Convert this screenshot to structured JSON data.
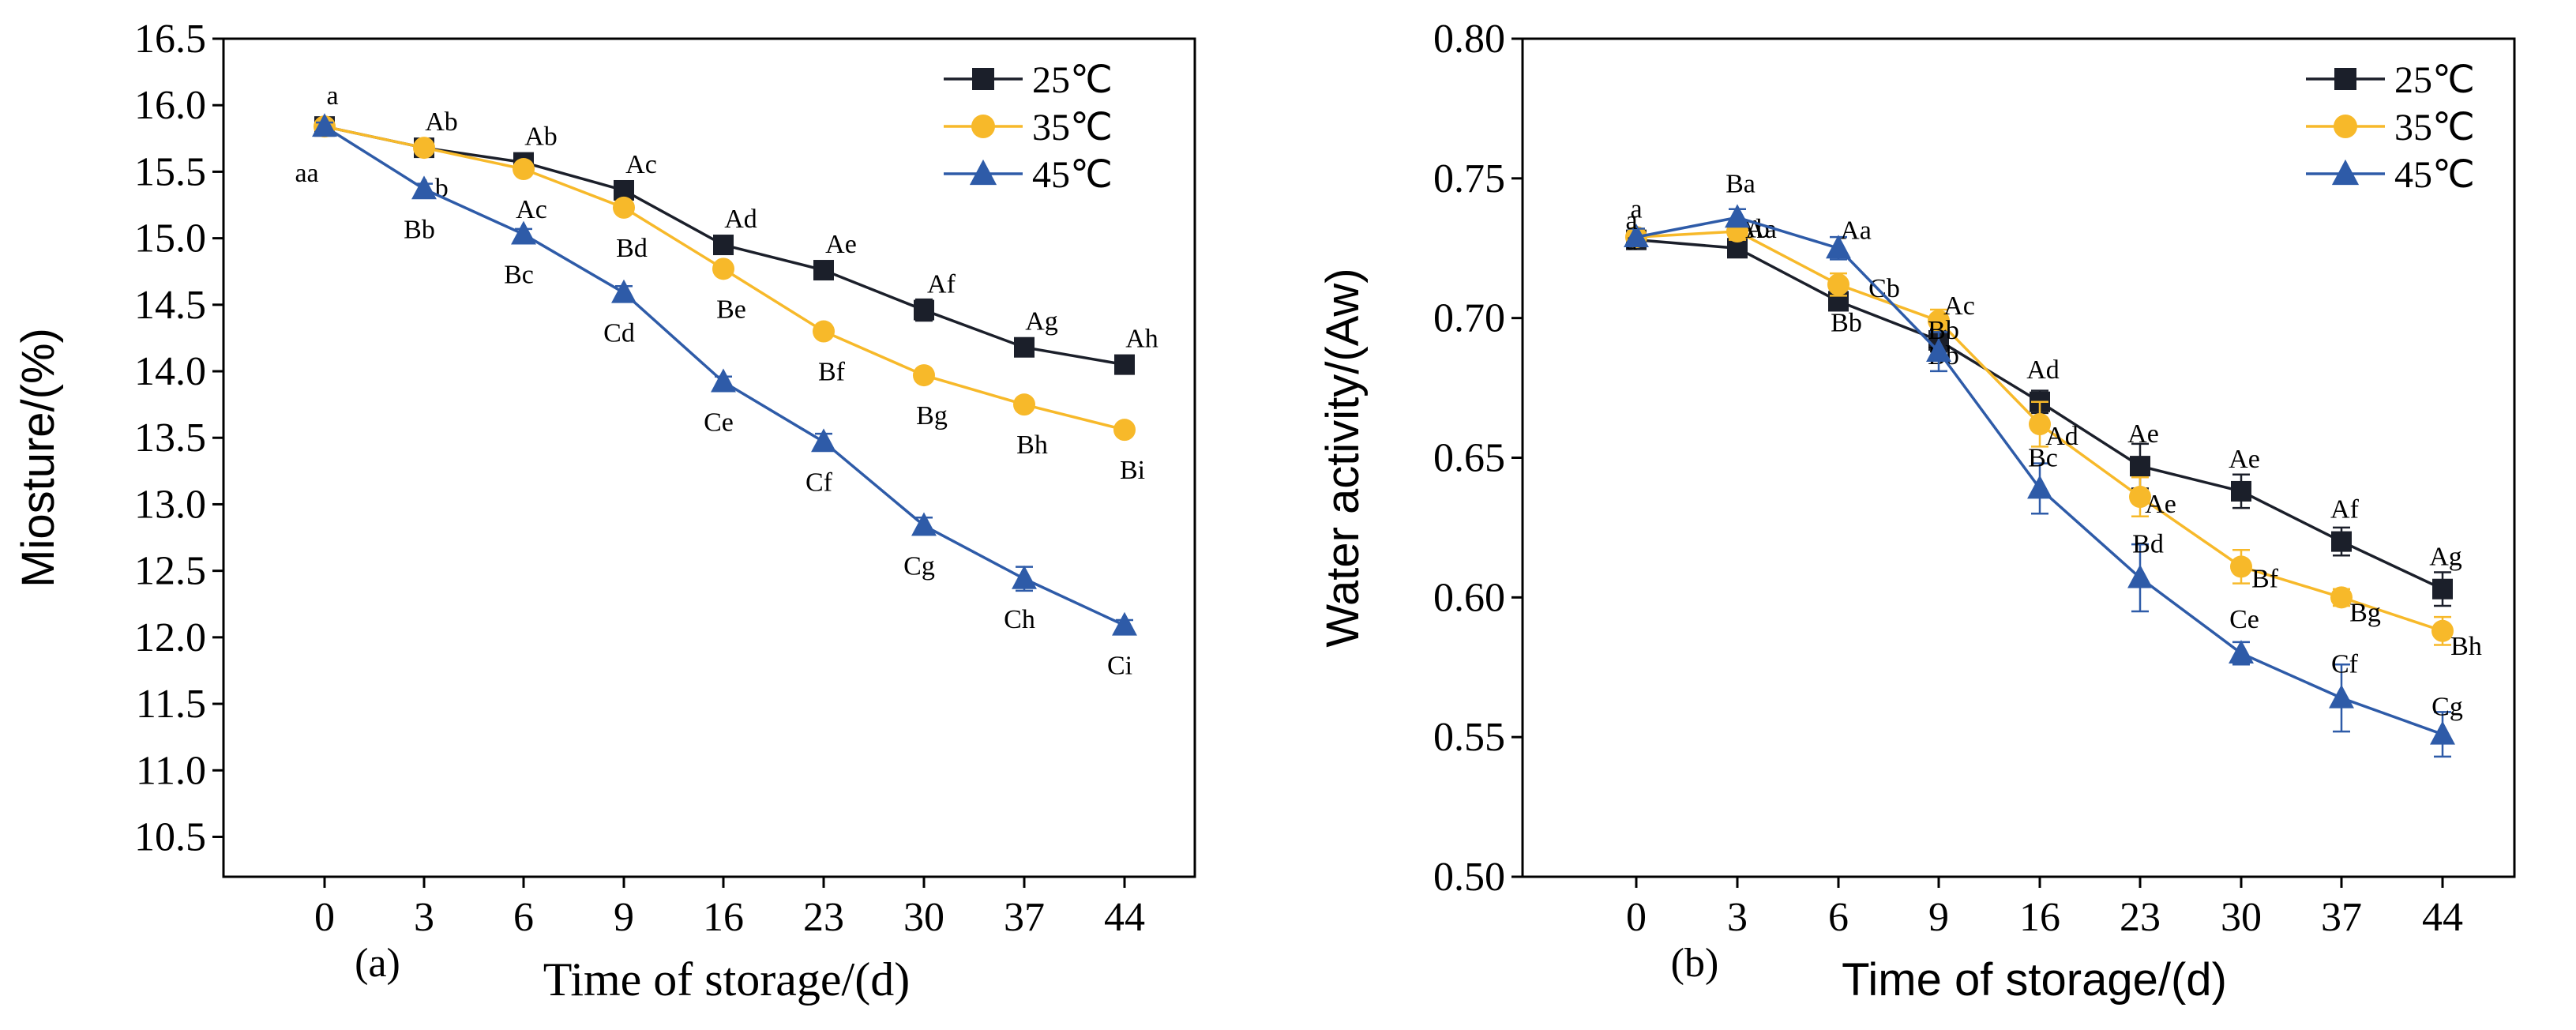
{
  "chart_data": [
    {
      "type": "line",
      "panel_label": "(a)",
      "xlabel": "Time of storage/(d)",
      "ylabel": "Miosture/(%)",
      "categories": [
        "0",
        "3",
        "6",
        "9",
        "16",
        "23",
        "30",
        "37",
        "44"
      ],
      "ylim": [
        10.2,
        16.5
      ],
      "yticks": [
        "10.5",
        "11.0",
        "11.5",
        "12.0",
        "12.5",
        "13.0",
        "13.5",
        "14.0",
        "14.5",
        "15.0",
        "15.5",
        "16.0",
        "16.5"
      ],
      "legend_position": "top-right",
      "series": [
        {
          "name": "25℃",
          "color": "#1b1f2a",
          "marker": "square",
          "values": [
            15.84,
            15.68,
            15.57,
            15.36,
            14.95,
            14.76,
            14.46,
            14.18,
            14.05
          ],
          "errors": [
            0.03,
            0.03,
            0.03,
            0.03,
            0.04,
            0.04,
            0.08,
            0.04,
            0.03
          ],
          "labels": [
            "a",
            "Ab",
            "Ab",
            "Ac",
            "Ad",
            "Ae",
            "Af",
            "Ag",
            "Ah"
          ]
        },
        {
          "name": "35℃",
          "color": "#f7b92a",
          "marker": "circle",
          "values": [
            15.84,
            15.68,
            15.52,
            15.23,
            14.77,
            14.3,
            13.97,
            13.75,
            13.56
          ],
          "errors": [
            0.03,
            0.03,
            0.04,
            0.04,
            0.04,
            0.04,
            0.04,
            0.04,
            0.04
          ],
          "labels": [
            "a",
            "Ab",
            "Ac",
            "Bd",
            "Be",
            "Bf",
            "Bg",
            "Bh",
            "Bi"
          ]
        },
        {
          "name": "45℃",
          "color": "#2e5ba8",
          "marker": "triangle",
          "values": [
            15.84,
            15.37,
            15.03,
            14.59,
            13.92,
            13.47,
            12.84,
            12.44,
            12.09
          ],
          "errors": [
            0.03,
            0.04,
            0.04,
            0.05,
            0.04,
            0.06,
            0.06,
            0.09,
            0.04
          ],
          "labels": [
            "a",
            "Bb",
            "Bc",
            "Cd",
            "Ce",
            "Cf",
            "Cg",
            "Ch",
            "Ci"
          ]
        }
      ]
    },
    {
      "type": "line",
      "panel_label": "(b)",
      "xlabel": "Time of storage/(d)",
      "ylabel": "Water activity/(Aw)",
      "categories": [
        "0",
        "3",
        "6",
        "9",
        "16",
        "23",
        "30",
        "37",
        "44"
      ],
      "ylim": [
        0.5,
        0.8
      ],
      "yticks": [
        "0.50",
        "0.55",
        "0.60",
        "0.65",
        "0.70",
        "0.75",
        "0.80"
      ],
      "legend_position": "top-right",
      "series": [
        {
          "name": "25℃",
          "color": "#1b1f2a",
          "marker": "square",
          "values": [
            0.728,
            0.725,
            0.706,
            0.692,
            0.67,
            0.647,
            0.638,
            0.62,
            0.603
          ],
          "errors": [
            0.003,
            0.002,
            0.003,
            0.004,
            0.004,
            0.008,
            0.006,
            0.005,
            0.006
          ],
          "labels": [
            "a",
            "Ab",
            "Bb",
            "Bb",
            "Ad",
            "Ae",
            "Ae",
            "Af",
            "Ag"
          ]
        },
        {
          "name": "35℃",
          "color": "#f7b92a",
          "marker": "circle",
          "values": [
            0.729,
            0.731,
            0.712,
            0.699,
            0.662,
            0.636,
            0.611,
            0.6,
            0.588
          ],
          "errors": [
            0.003,
            0.003,
            0.004,
            0.004,
            0.008,
            0.007,
            0.006,
            0.003,
            0.005
          ],
          "labels": [
            "a",
            "Aa",
            "Cb",
            "Ac",
            "Ad",
            "Ae",
            "Bf",
            "Bg",
            "Bh"
          ]
        },
        {
          "name": "45℃",
          "color": "#2e5ba8",
          "marker": "triangle",
          "values": [
            0.729,
            0.736,
            0.725,
            0.688,
            0.639,
            0.607,
            0.58,
            0.564,
            0.551
          ],
          "errors": [
            0.003,
            0.003,
            0.004,
            0.007,
            0.009,
            0.012,
            0.004,
            0.012,
            0.008
          ],
          "labels": [
            "a",
            "Ba",
            "Aa",
            "Bb",
            "Bc",
            "Bd",
            "Ce",
            "Cf",
            "Cg"
          ]
        }
      ]
    }
  ]
}
